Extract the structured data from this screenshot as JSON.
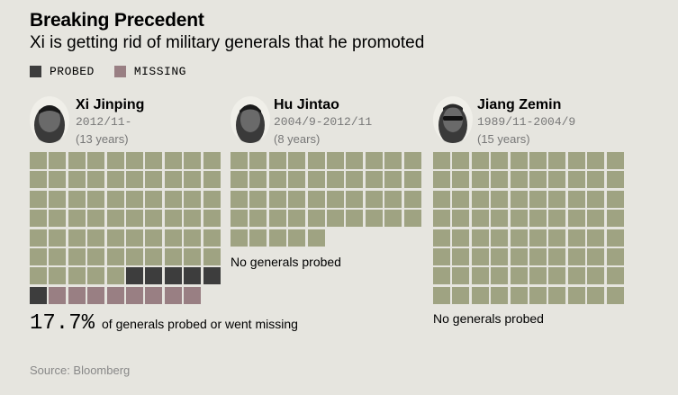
{
  "title": "Breaking Precedent",
  "subtitle": "Xi is getting rid of military generals that he promoted",
  "legend": [
    {
      "label": "PROBED",
      "color": "#3d3d3d"
    },
    {
      "label": "MISSING",
      "color": "#997f83"
    }
  ],
  "colors": {
    "olive": "#9fa382",
    "probed": "#3d3d3d",
    "missing": "#997f83"
  },
  "leaders": [
    {
      "name": "Xi Jinping",
      "term": "2012/11-",
      "years": "(13 years)"
    },
    {
      "name": "Hu Jintao",
      "term": "2004/9-2012/11",
      "years": "(8 years)"
    },
    {
      "name": "Jiang Zemin",
      "term": "1989/11-2004/9",
      "years": "(15 years)"
    }
  ],
  "notes": {
    "hu": "No generals probed",
    "jiang": "No generals probed"
  },
  "stat": {
    "value": "17.7%",
    "text": "of generals probed or went missing"
  },
  "source": "Source: Bloomberg",
  "chart_data": [
    {
      "type": "waffle",
      "name": "Xi Jinping",
      "columns": 10,
      "rows": [
        [
          "o",
          "o",
          "o",
          "o",
          "o",
          "o",
          "o",
          "o",
          "o",
          "o"
        ],
        [
          "o",
          "o",
          "o",
          "o",
          "o",
          "o",
          "o",
          "o",
          "o",
          "o"
        ],
        [
          "o",
          "o",
          "o",
          "o",
          "o",
          "o",
          "o",
          "o",
          "o",
          "o"
        ],
        [
          "o",
          "o",
          "o",
          "o",
          "o",
          "o",
          "o",
          "o",
          "o",
          "o"
        ],
        [
          "o",
          "o",
          "o",
          "o",
          "o",
          "o",
          "o",
          "o",
          "o",
          "o"
        ],
        [
          "o",
          "o",
          "o",
          "o",
          "o",
          "o",
          "o",
          "o",
          "o",
          "o"
        ],
        [
          "o",
          "o",
          "o",
          "o",
          "o",
          "p",
          "p",
          "p",
          "p",
          "p"
        ],
        [
          "p",
          "m",
          "m",
          "m",
          "m",
          "m",
          "m",
          "m",
          "m"
        ]
      ]
    },
    {
      "type": "waffle",
      "name": "Hu Jintao",
      "columns": 10,
      "rows": [
        [
          "o",
          "o",
          "o",
          "o",
          "o",
          "o",
          "o",
          "o",
          "o",
          "o"
        ],
        [
          "o",
          "o",
          "o",
          "o",
          "o",
          "o",
          "o",
          "o",
          "o",
          "o"
        ],
        [
          "o",
          "o",
          "o",
          "o",
          "o",
          "o",
          "o",
          "o",
          "o",
          "o"
        ],
        [
          "o",
          "o",
          "o",
          "o",
          "o",
          "o",
          "o",
          "o",
          "o",
          "o"
        ],
        [
          "o",
          "o",
          "o",
          "o",
          "o"
        ]
      ]
    },
    {
      "type": "waffle",
      "name": "Jiang Zemin",
      "columns": 10,
      "rows": [
        [
          "o",
          "o",
          "o",
          "o",
          "o",
          "o",
          "o",
          "o",
          "o",
          "o"
        ],
        [
          "o",
          "o",
          "o",
          "o",
          "o",
          "o",
          "o",
          "o",
          "o",
          "o"
        ],
        [
          "o",
          "o",
          "o",
          "o",
          "o",
          "o",
          "o",
          "o",
          "o",
          "o"
        ],
        [
          "o",
          "o",
          "o",
          "o",
          "o",
          "o",
          "o",
          "o",
          "o",
          "o"
        ],
        [
          "o",
          "o",
          "o",
          "o",
          "o",
          "o",
          "o",
          "o",
          "o",
          "o"
        ],
        [
          "o",
          "o",
          "o",
          "o",
          "o",
          "o",
          "o",
          "o",
          "o",
          "o"
        ],
        [
          "o",
          "o",
          "o",
          "o",
          "o",
          "o",
          "o",
          "o",
          "o",
          "o"
        ],
        [
          "o",
          "o",
          "o",
          "o",
          "o",
          "o",
          "o",
          "o",
          "o",
          "o"
        ]
      ]
    }
  ]
}
